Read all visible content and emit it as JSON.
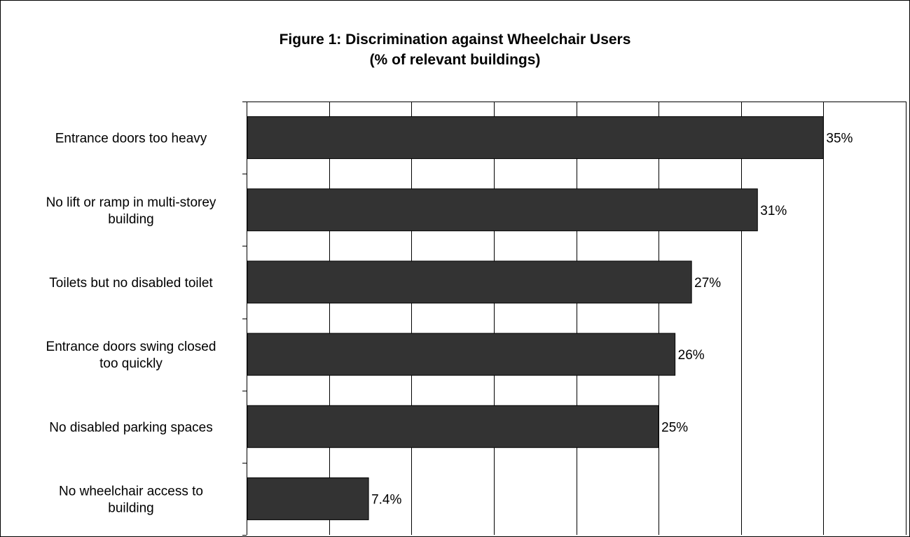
{
  "chart_data": {
    "type": "bar",
    "orientation": "horizontal",
    "title": "Figure 1: Discrimination against Wheelchair Users",
    "subtitle": "(% of relevant buildings)",
    "categories": [
      [
        "Entrance doors too heavy"
      ],
      [
        "No lift or ramp in multi-storey",
        "building"
      ],
      [
        "Toilets but no disabled toilet"
      ],
      [
        "Entrance doors swing closed",
        "too quickly"
      ],
      [
        "No disabled parking spaces"
      ],
      [
        "No wheelchair access to",
        "building"
      ]
    ],
    "values": [
      35,
      31,
      27,
      26,
      25,
      7.4
    ],
    "data_labels": [
      "35%",
      "31%",
      "27%",
      "26%",
      "25%",
      "7.4%"
    ],
    "xlim": [
      0,
      40
    ],
    "x_gridline_step": 5,
    "xlabel": "",
    "ylabel": "",
    "grid": true,
    "legend": "none",
    "bar_color": "#333333",
    "bar_edge_color": "#000000"
  }
}
